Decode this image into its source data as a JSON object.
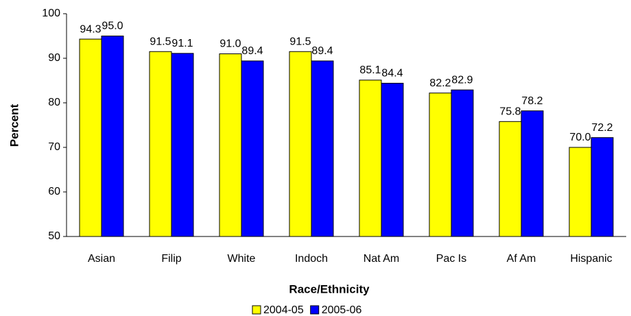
{
  "chart_data": {
    "type": "bar",
    "x_label": "Race/Ethnicity",
    "y_label": "Percent",
    "categories": [
      "Asian",
      "Filip",
      "White",
      "Indoch",
      "Nat Am",
      "Pac Is",
      "Af Am",
      "Hispanic"
    ],
    "series": [
      {
        "name": "2004-05",
        "color": "#ffff00",
        "values": [
          94.3,
          91.5,
          91.0,
          91.5,
          85.1,
          82.2,
          75.8,
          70.0
        ],
        "value_labels": [
          "94.3",
          "91.5",
          "91.0",
          "91.5",
          "85.1",
          "82.2",
          "75.8",
          "70.0"
        ]
      },
      {
        "name": "2005-06",
        "color": "#0000ff",
        "values": [
          95.0,
          91.1,
          89.4,
          89.4,
          84.4,
          82.9,
          78.2,
          72.2
        ],
        "value_labels": [
          "95.0",
          "91.1",
          "89.4",
          "89.4",
          "84.4",
          "82.9",
          "78.2",
          "72.2"
        ]
      }
    ],
    "ylim": [
      50,
      100
    ],
    "yticks": [
      50,
      60,
      70,
      80,
      90,
      100
    ],
    "grid": false,
    "legend": "bottom"
  }
}
